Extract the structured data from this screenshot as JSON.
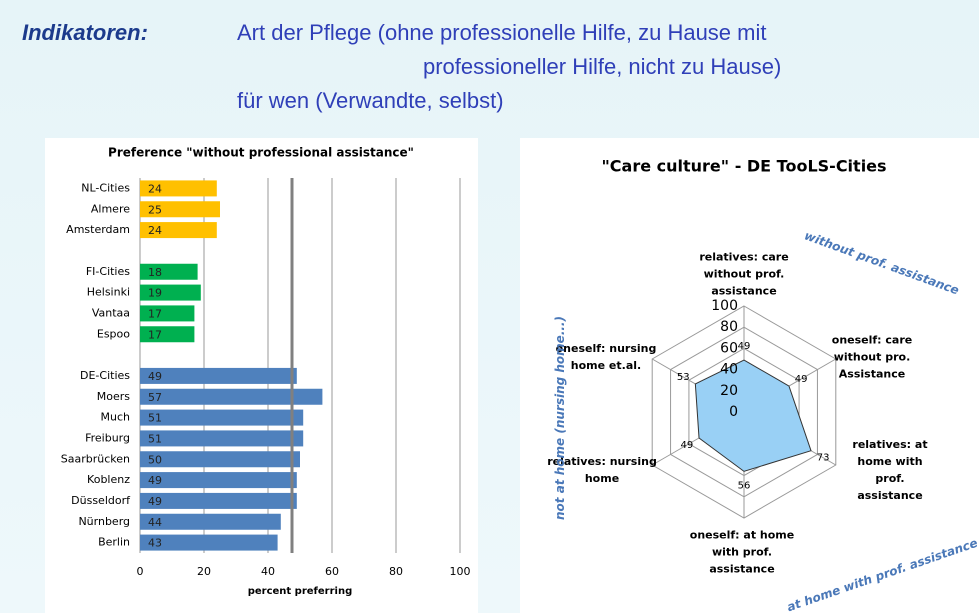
{
  "header": {
    "label": "Indikatoren:",
    "lines": [
      "Art der Pflege (ohne professionelle Hilfe, zu Hause mit",
      "professioneller Hilfe, nicht zu Hause)",
      "für wen (Verwandte, selbst)"
    ]
  },
  "chart_data": [
    {
      "type": "hbar",
      "title": "Preference \"without professional assistance\"",
      "xlabel": "percent preferring",
      "categories": [
        "NL-Cities",
        "Almere",
        "Amsterdam",
        null,
        "FI-Cities",
        "Helsinki",
        "Vantaa",
        "Espoo",
        null,
        "DE-Cities",
        "Moers",
        "Much",
        "Freiburg",
        "Saarbrücken",
        "Koblenz",
        "Düsseldorf",
        "Nürnberg",
        "Berlin"
      ],
      "values": [
        24,
        25,
        24,
        null,
        18,
        19,
        17,
        17,
        null,
        49,
        57,
        51,
        51,
        50,
        49,
        49,
        44,
        43
      ],
      "colors": [
        "#ffc000",
        "#ffc000",
        "#ffc000",
        null,
        "#00b050",
        "#00b050",
        "#00b050",
        "#00b050",
        null,
        "#4f81bd",
        "#4f81bd",
        "#4f81bd",
        "#4f81bd",
        "#4f81bd",
        "#4f81bd",
        "#4f81bd",
        "#4f81bd",
        "#4f81bd"
      ],
      "reference_line": 47.5,
      "xlim": [
        0,
        100
      ],
      "xticks": [
        0,
        20,
        40,
        60,
        80,
        100
      ],
      "grid": true
    },
    {
      "type": "radar",
      "title": "\"Care culture\" -  DE TooLS-Cities",
      "categories": [
        "relatives: care\nwithout prof.\nassistance",
        "oneself: care\nwithout pro.\nAssistance",
        "relatives: at\nhome with prof.\nassistance",
        "oneself: at home\nwith prof.\nassistance",
        "relatives: nursing\nhome",
        "oneself: nursing\nhome et.al."
      ],
      "values": [
        49,
        49,
        73,
        56,
        49,
        53
      ],
      "color": "#99d0f5",
      "rlim": [
        0,
        100
      ],
      "rticks": [
        0,
        20,
        40,
        60,
        80,
        100
      ],
      "annotations": [
        "without prof. assistance",
        "not at home (nursing home...)",
        "at home with prof. assistance"
      ]
    }
  ]
}
